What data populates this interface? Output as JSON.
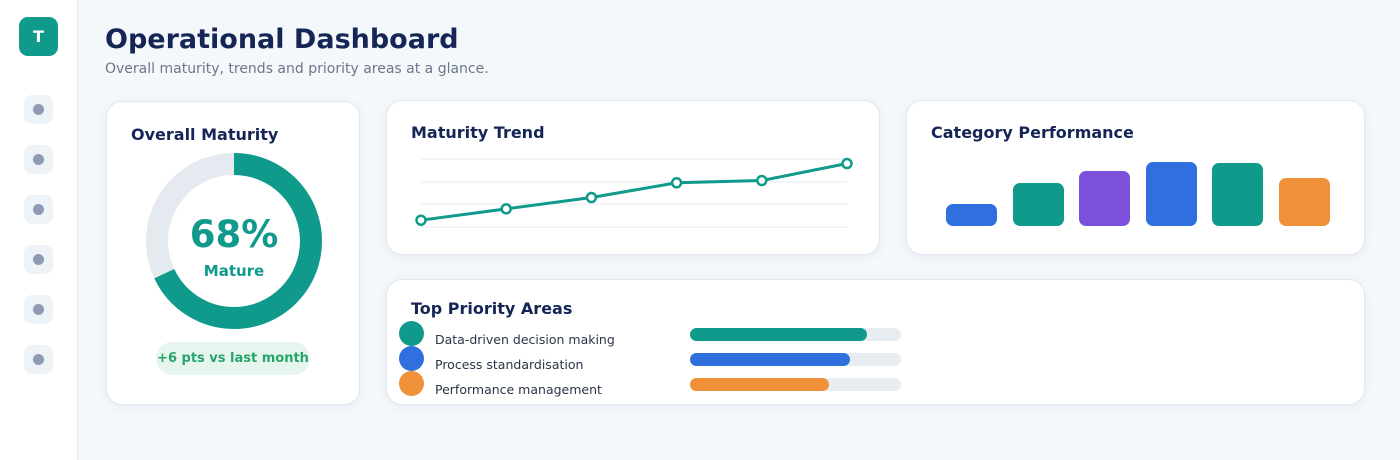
{
  "sidebar": {
    "logo_letter": "T",
    "nav_items": [
      "nav-item-1",
      "nav-item-2",
      "nav-item-3",
      "nav-item-4",
      "nav-item-5",
      "nav-item-6"
    ]
  },
  "header": {
    "title": "Operational Dashboard",
    "subtitle": "Overall maturity, trends and priority areas at a glance."
  },
  "maturity": {
    "title": "Overall Maturity",
    "value": "68%",
    "percent": 68,
    "label": "Mature",
    "change": "+6 pts vs last month",
    "accent_color": "#0f9a8c",
    "track_color": "#e5e9f0"
  },
  "trend": {
    "title": "Maturity Trend",
    "values": [
      18,
      23,
      28,
      34.5,
      35.5,
      43
    ],
    "y_range": [
      15,
      45
    ],
    "line_color": "#0f9a8c"
  },
  "categories": {
    "title": "Category Performance",
    "values": [
      20,
      40,
      51,
      59,
      58,
      44
    ],
    "colors": [
      "#2f6fde",
      "#0f9a8c",
      "#7b51db",
      "#2f6fde",
      "#0f9a8c",
      "#f0913a"
    ]
  },
  "priorities": {
    "title": "Top Priority Areas",
    "items": [
      {
        "label": "Data-driven decision making",
        "progress": 0.84,
        "color": "#0f9a8c"
      },
      {
        "label": "Process standardisation",
        "progress": 0.76,
        "color": "#2f6fde"
      },
      {
        "label": "Performance management",
        "progress": 0.66,
        "color": "#f0913a"
      }
    ]
  }
}
